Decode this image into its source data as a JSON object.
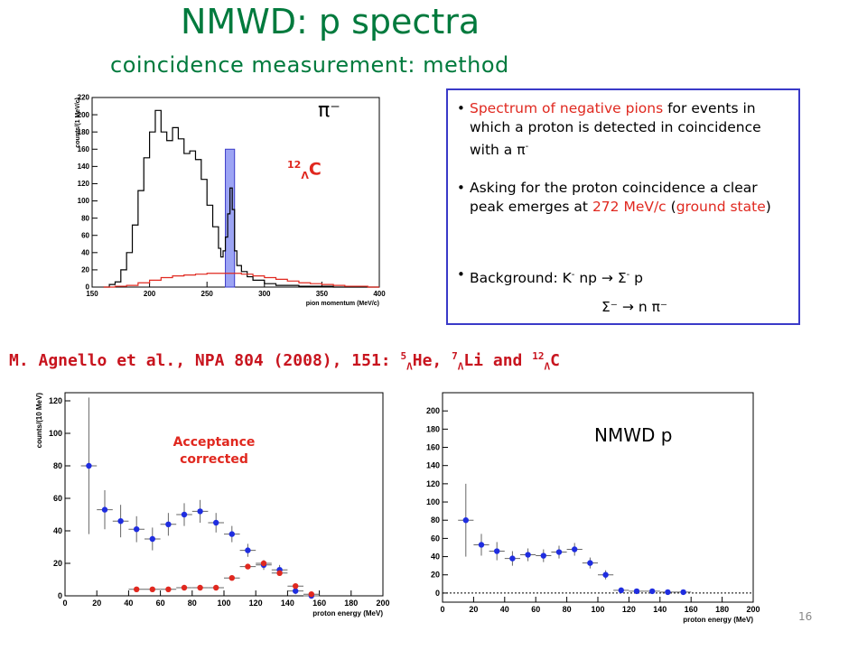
{
  "slide": {
    "title": "NMWD: p spectra",
    "subtitle": "coincidence measurement: method",
    "number": "16"
  },
  "info_box": {
    "bullet1_red": "Spectrum of negative pions",
    "bullet1_rest": " for events in which a proton is detected in coincidence with a π",
    "bullet1_sup": "-",
    "bullet2_a": "Asking for the proton coincidence a clear peak emerges at ",
    "bullet2_red1": "272 MeV/c",
    "bullet2_b": " (",
    "bullet2_red2": "ground state",
    "bullet2_c": ")",
    "bullet3_a": "Background: K",
    "bullet3_b": " np → Σ",
    "bullet3_c": " p",
    "bullet3_line2": "Σ⁻ → n π⁻"
  },
  "reference": {
    "text": "M. Agnello et al., NPA 804 (2008), 151: ",
    "he": "He, ",
    "li": "Li and ",
    "c": "C",
    "a5": "5",
    "a7": "7",
    "a12": "12",
    "lam": "Λ"
  },
  "labels": {
    "pi_minus": "π⁻",
    "c12_mass": "12",
    "c12_lambda": "Λ",
    "c12_C": "C",
    "acceptance": "Acceptance corrected",
    "nmwd_p": "NMWD p"
  },
  "colors": {
    "title_green": "#007a3d",
    "red": "#e0281f",
    "box_border": "#3a3ac8",
    "blue_marker": "#1f2de0",
    "highlight": "#7b86f0"
  },
  "chart_data": [
    {
      "type": "line",
      "name": "pion-spectrum",
      "xlabel": "pion momentum (MeV/c)",
      "ylabel": "counts/(1 MeV/c)",
      "xlim": [
        150,
        400
      ],
      "ylim": [
        0,
        220
      ],
      "xticks": [
        150,
        200,
        250,
        300,
        350,
        400
      ],
      "yticks": [
        0,
        20,
        40,
        60,
        80,
        100,
        120,
        140,
        160,
        180,
        200,
        220
      ],
      "highlight_band": [
        266,
        274
      ],
      "series": [
        {
          "color": "#000000",
          "x": [
            160,
            165,
            170,
            175,
            180,
            185,
            190,
            195,
            200,
            205,
            210,
            215,
            220,
            225,
            230,
            235,
            240,
            245,
            250,
            255,
            260,
            262,
            264,
            266,
            268,
            270,
            272,
            274,
            276,
            280,
            285,
            290,
            300,
            310,
            320,
            330,
            340,
            350,
            360,
            370,
            380,
            390,
            400
          ],
          "y": [
            0,
            3,
            6,
            20,
            40,
            72,
            112,
            150,
            180,
            205,
            180,
            170,
            185,
            172,
            155,
            158,
            148,
            125,
            95,
            70,
            45,
            35,
            42,
            58,
            85,
            115,
            90,
            42,
            25,
            18,
            12,
            8,
            4,
            2,
            2,
            1,
            1,
            1,
            0,
            0,
            0,
            0,
            0
          ]
        },
        {
          "color": "#e0281f",
          "x": [
            160,
            170,
            180,
            190,
            200,
            210,
            220,
            230,
            240,
            250,
            260,
            270,
            280,
            290,
            300,
            310,
            320,
            330,
            340,
            350,
            360,
            370,
            380,
            390,
            400
          ],
          "y": [
            0,
            1,
            2,
            5,
            8,
            11,
            13,
            14,
            15,
            16,
            16,
            16,
            15,
            13,
            11,
            9,
            7,
            5,
            4,
            3,
            2,
            1,
            1,
            0,
            0
          ]
        }
      ]
    },
    {
      "type": "scatter",
      "name": "acceptance-corrected",
      "xlabel": "proton energy (MeV)",
      "ylabel": "counts/(10 MeV)",
      "xlim": [
        0,
        200
      ],
      "ylim": [
        0,
        125
      ],
      "xticks": [
        0,
        20,
        40,
        60,
        80,
        100,
        120,
        140,
        160,
        180,
        200
      ],
      "yticks": [
        0,
        20,
        40,
        60,
        80,
        100,
        120
      ],
      "series": [
        {
          "color": "#1f2de0",
          "x": [
            15,
            25,
            35,
            45,
            55,
            65,
            75,
            85,
            95,
            105,
            115,
            125,
            135,
            145,
            155
          ],
          "y": [
            80,
            53,
            46,
            41,
            35,
            44,
            50,
            52,
            45,
            38,
            28,
            19,
            16,
            3,
            0
          ],
          "yerr": [
            42,
            12,
            10,
            8,
            7,
            7,
            7,
            7,
            6,
            5,
            4,
            3,
            3,
            2,
            1
          ]
        },
        {
          "color": "#e0281f",
          "x": [
            45,
            55,
            65,
            75,
            85,
            95,
            105,
            115,
            125,
            135,
            145,
            155
          ],
          "y": [
            4,
            4,
            4,
            5,
            5,
            5,
            11,
            18,
            20,
            14,
            6,
            1
          ],
          "yerr": [
            1,
            1,
            1,
            1,
            1,
            1,
            1,
            1,
            1,
            1,
            1,
            1
          ]
        }
      ]
    },
    {
      "type": "scatter",
      "name": "nmwd-p",
      "xlabel": "proton energy (MeV)",
      "xlim": [
        0,
        200
      ],
      "ylim": [
        -10,
        220
      ],
      "xticks": [
        0,
        20,
        40,
        60,
        80,
        100,
        120,
        140,
        160,
        180,
        200
      ],
      "yticks": [
        0,
        20,
        40,
        60,
        80,
        100,
        120,
        140,
        160,
        180,
        200
      ],
      "series": [
        {
          "color": "#1f2de0",
          "x": [
            15,
            25,
            35,
            45,
            55,
            65,
            75,
            85,
            95,
            105,
            115,
            125,
            135,
            145,
            155
          ],
          "y": [
            80,
            53,
            46,
            38,
            42,
            41,
            45,
            48,
            33,
            20,
            3,
            2,
            2,
            1,
            1
          ],
          "yerr": [
            40,
            12,
            10,
            8,
            7,
            7,
            7,
            7,
            6,
            5,
            3,
            2,
            2,
            1,
            1
          ]
        }
      ]
    }
  ]
}
